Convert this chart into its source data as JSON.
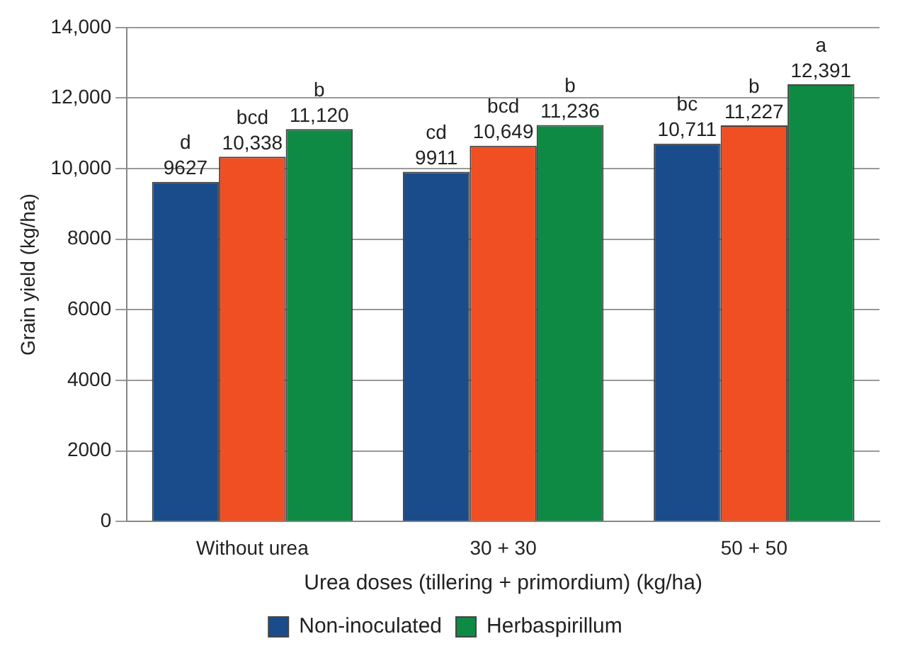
{
  "chart_data": {
    "type": "bar",
    "xlabel": "Urea doses (tillering + primordium) (kg/ha)",
    "ylabel": "Grain yield (kg/ha)",
    "categories": [
      "Without urea",
      "30 + 30",
      "50 + 50"
    ],
    "series": [
      {
        "name": "Non-inoculated",
        "color": "#1a4c8c",
        "values": [
          9627,
          9911,
          10711
        ],
        "value_labels": [
          "9627",
          "9911",
          "10,711"
        ]
      },
      {
        "color": "#f04e23",
        "values": [
          10338,
          10649,
          11227
        ],
        "value_labels": [
          "10,338",
          "10,649",
          "11,227"
        ]
      },
      {
        "name": "Herbaspirillum",
        "color": "#0f8a44",
        "values": [
          11120,
          11236,
          12391
        ],
        "value_labels": [
          "11,120",
          "11,236",
          "12,391"
        ]
      }
    ],
    "annotations": [
      "d",
      "bcd",
      "b",
      "cd",
      "bcd",
      "b",
      "bc",
      "b",
      "a"
    ],
    "ylim": [
      0,
      14000
    ],
    "yticks": [
      0,
      2000,
      4000,
      6000,
      8000,
      {
        "value": 10000,
        "label": "10,000"
      },
      {
        "value": 12000,
        "label": "12,000"
      },
      {
        "value": 14000,
        "label": "14,000"
      }
    ],
    "grid": "y",
    "legend": "bottom"
  }
}
